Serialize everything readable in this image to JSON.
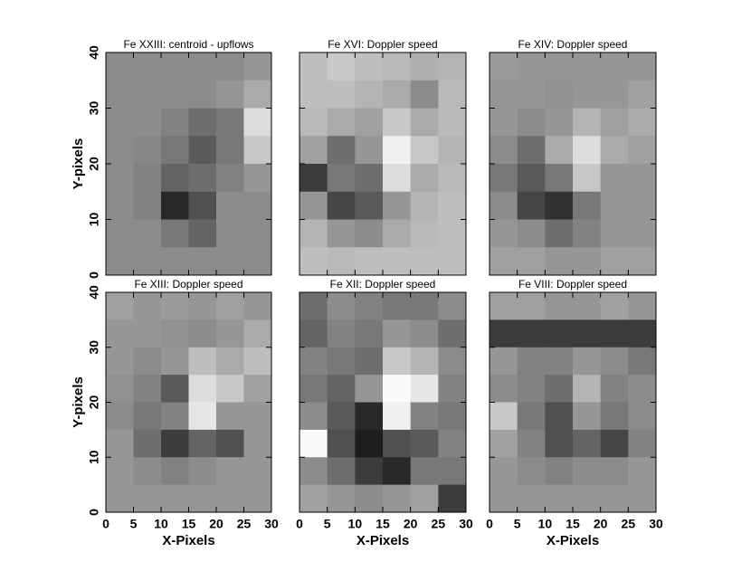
{
  "chart_data": [
    {
      "type": "heatmap",
      "title": "Fe XXIII: centroid - upflows",
      "ylabel": "Y-pixels",
      "xlim": [
        0,
        30
      ],
      "ylim": [
        0,
        40
      ],
      "xticks": [
        0,
        5,
        10,
        15,
        20,
        25,
        30
      ],
      "yticks": [
        0,
        10,
        20,
        30,
        40
      ],
      "z": [
        [
          140,
          140,
          140,
          140,
          140,
          150
        ],
        [
          140,
          140,
          140,
          140,
          150,
          170
        ],
        [
          140,
          140,
          130,
          110,
          120,
          220
        ],
        [
          140,
          135,
          120,
          90,
          120,
          200
        ],
        [
          140,
          130,
          100,
          110,
          130,
          150
        ],
        [
          140,
          130,
          40,
          80,
          140,
          140
        ],
        [
          140,
          140,
          120,
          100,
          140,
          140
        ],
        [
          140,
          140,
          140,
          140,
          140,
          140
        ]
      ]
    },
    {
      "type": "heatmap",
      "title": "Fe XVI: Doppler speed",
      "xlim": [
        0,
        30
      ],
      "ylim": [
        0,
        40
      ],
      "xticks": [
        0,
        5,
        10,
        15,
        20,
        25,
        30
      ],
      "yticks": [
        0,
        10,
        20,
        30,
        40
      ],
      "z": [
        [
          190,
          200,
          190,
          185,
          175,
          180
        ],
        [
          190,
          190,
          180,
          170,
          140,
          185
        ],
        [
          185,
          170,
          160,
          200,
          170,
          185
        ],
        [
          160,
          110,
          150,
          240,
          200,
          180
        ],
        [
          60,
          120,
          110,
          220,
          170,
          185
        ],
        [
          150,
          70,
          90,
          150,
          180,
          190
        ],
        [
          180,
          150,
          140,
          170,
          185,
          190
        ],
        [
          190,
          185,
          190,
          190,
          190,
          190
        ]
      ]
    },
    {
      "type": "heatmap",
      "title": "Fe XIV: Doppler speed",
      "xlim": [
        0,
        30
      ],
      "ylim": [
        0,
        40
      ],
      "xticks": [
        0,
        5,
        10,
        15,
        20,
        25,
        30
      ],
      "yticks": [
        0,
        10,
        20,
        30,
        40
      ],
      "z": [
        [
          155,
          150,
          150,
          150,
          150,
          150
        ],
        [
          150,
          150,
          145,
          150,
          150,
          160
        ],
        [
          150,
          140,
          150,
          180,
          160,
          170
        ],
        [
          140,
          110,
          170,
          220,
          170,
          160
        ],
        [
          120,
          90,
          120,
          200,
          150,
          150
        ],
        [
          140,
          70,
          50,
          120,
          150,
          150
        ],
        [
          150,
          140,
          110,
          130,
          150,
          150
        ],
        [
          160,
          160,
          150,
          150,
          160,
          160
        ]
      ]
    },
    {
      "type": "heatmap",
      "title": "Fe XIII: Doppler speed",
      "xlabel": "X-Pixels",
      "ylabel": "Y-pixels",
      "xlim": [
        0,
        30
      ],
      "ylim": [
        0,
        40
      ],
      "xticks": [
        0,
        5,
        10,
        15,
        20,
        25,
        30
      ],
      "yticks": [
        0,
        10,
        20,
        30,
        40
      ],
      "z": [
        [
          160,
          150,
          155,
          150,
          160,
          150
        ],
        [
          150,
          150,
          145,
          140,
          150,
          170
        ],
        [
          150,
          140,
          150,
          190,
          170,
          190
        ],
        [
          145,
          130,
          90,
          220,
          200,
          160
        ],
        [
          140,
          120,
          130,
          230,
          150,
          150
        ],
        [
          150,
          110,
          60,
          100,
          80,
          150
        ],
        [
          150,
          140,
          130,
          140,
          150,
          150
        ],
        [
          150,
          150,
          150,
          150,
          150,
          150
        ]
      ]
    },
    {
      "type": "heatmap",
      "title": "Fe XII: Doppler speed",
      "xlabel": "X-Pixels",
      "xlim": [
        0,
        30
      ],
      "ylim": [
        0,
        40
      ],
      "xticks": [
        0,
        5,
        10,
        15,
        20,
        25,
        30
      ],
      "yticks": [
        0,
        10,
        20,
        30,
        40
      ],
      "z": [
        [
          110,
          140,
          130,
          120,
          120,
          140
        ],
        [
          100,
          130,
          120,
          150,
          140,
          110
        ],
        [
          130,
          120,
          110,
          200,
          180,
          140
        ],
        [
          120,
          100,
          150,
          250,
          230,
          130
        ],
        [
          140,
          90,
          40,
          240,
          130,
          120
        ],
        [
          250,
          80,
          30,
          80,
          90,
          130
        ],
        [
          140,
          110,
          60,
          40,
          120,
          120
        ],
        [
          160,
          150,
          140,
          150,
          160,
          60
        ]
      ]
    },
    {
      "type": "heatmap",
      "title": "Fe VIII: Doppler speed",
      "xlabel": "X-Pixels",
      "xlim": [
        0,
        30
      ],
      "ylim": [
        0,
        40
      ],
      "xticks": [
        0,
        5,
        10,
        15,
        20,
        25,
        30
      ],
      "yticks": [
        0,
        10,
        20,
        30,
        40
      ],
      "z": [
        [
          160,
          160,
          150,
          150,
          160,
          150
        ],
        [
          60,
          60,
          60,
          60,
          60,
          60
        ],
        [
          150,
          130,
          130,
          150,
          140,
          120
        ],
        [
          140,
          130,
          110,
          180,
          130,
          140
        ],
        [
          200,
          120,
          80,
          150,
          120,
          140
        ],
        [
          160,
          130,
          80,
          100,
          70,
          130
        ],
        [
          150,
          140,
          130,
          140,
          140,
          150
        ],
        [
          150,
          150,
          150,
          150,
          150,
          150
        ]
      ]
    }
  ]
}
